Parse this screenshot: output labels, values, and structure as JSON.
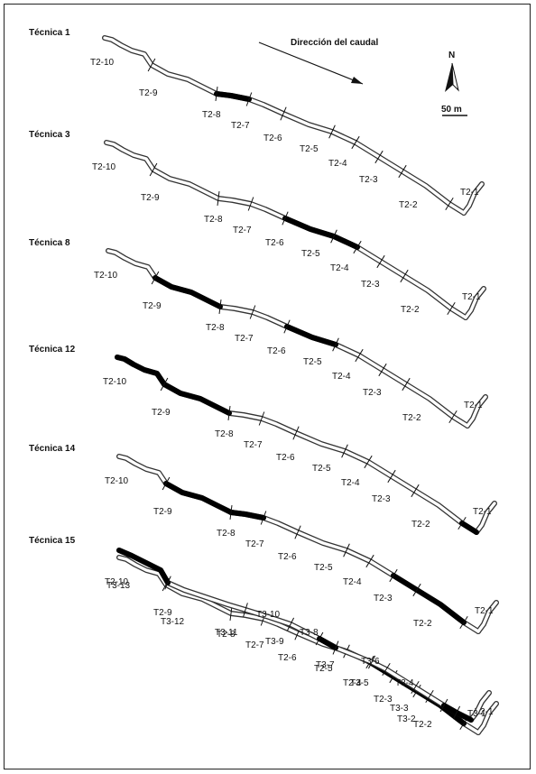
{
  "annotations": {
    "flow_label": "Dirección del caudal",
    "north_label": "N",
    "scale_label": "50 m"
  },
  "colors": {
    "channel_outline": "#333333",
    "channel_fill": "#ffffff",
    "highlight": "#000000",
    "text": "#111111"
  },
  "panels": [
    {
      "title": "Técnica 1",
      "segments": [
        {
          "label": "T2-10",
          "highlighted": false
        },
        {
          "label": "T2-9",
          "highlighted": false
        },
        {
          "label": "T2-8",
          "highlighted": true
        },
        {
          "label": "T2-7",
          "highlighted": false
        },
        {
          "label": "T2-6",
          "highlighted": false
        },
        {
          "label": "T2-5",
          "highlighted": false
        },
        {
          "label": "T2-4",
          "highlighted": false
        },
        {
          "label": "T2-3",
          "highlighted": false
        },
        {
          "label": "T2-2",
          "highlighted": false
        },
        {
          "label": "T2-1",
          "highlighted": false
        }
      ]
    },
    {
      "title": "Técnica 3",
      "segments": [
        {
          "label": "T2-10",
          "highlighted": false
        },
        {
          "label": "T2-9",
          "highlighted": false
        },
        {
          "label": "T2-8",
          "highlighted": false
        },
        {
          "label": "T2-7",
          "highlighted": false
        },
        {
          "label": "T2-6",
          "highlighted": true
        },
        {
          "label": "T2-5",
          "highlighted": true
        },
        {
          "label": "T2-4",
          "highlighted": false
        },
        {
          "label": "T2-3",
          "highlighted": false
        },
        {
          "label": "T2-2",
          "highlighted": false
        },
        {
          "label": "T2-1",
          "highlighted": false
        }
      ]
    },
    {
      "title": "Técnica 8",
      "segments": [
        {
          "label": "T2-10",
          "highlighted": false
        },
        {
          "label": "T2-9",
          "highlighted": true
        },
        {
          "label": "T2-8",
          "highlighted": false
        },
        {
          "label": "T2-7",
          "highlighted": false
        },
        {
          "label": "T2-6",
          "highlighted": true
        },
        {
          "label": "T2-5",
          "highlighted": false
        },
        {
          "label": "T2-4",
          "highlighted": false
        },
        {
          "label": "T2-3",
          "highlighted": false
        },
        {
          "label": "T2-2",
          "highlighted": false
        },
        {
          "label": "T2-1",
          "highlighted": false
        }
      ]
    },
    {
      "title": "Técnica 12",
      "segments": [
        {
          "label": "T2-10",
          "highlighted": true
        },
        {
          "label": "T2-9",
          "highlighted": true
        },
        {
          "label": "T2-8",
          "highlighted": false
        },
        {
          "label": "T2-7",
          "highlighted": false
        },
        {
          "label": "T2-6",
          "highlighted": false
        },
        {
          "label": "T2-5",
          "highlighted": false
        },
        {
          "label": "T2-4",
          "highlighted": false
        },
        {
          "label": "T2-3",
          "highlighted": false
        },
        {
          "label": "T2-2",
          "highlighted": false
        },
        {
          "label": "T2-1",
          "highlighted": true
        }
      ]
    },
    {
      "title": "Técnica 14",
      "segments": [
        {
          "label": "T2-10",
          "highlighted": false
        },
        {
          "label": "T2-9",
          "highlighted": true
        },
        {
          "label": "T2-8",
          "highlighted": true
        },
        {
          "label": "T2-7",
          "highlighted": false
        },
        {
          "label": "T2-6",
          "highlighted": false
        },
        {
          "label": "T2-5",
          "highlighted": false
        },
        {
          "label": "T2-4",
          "highlighted": false
        },
        {
          "label": "T2-3",
          "highlighted": true
        },
        {
          "label": "T2-2",
          "highlighted": true
        },
        {
          "label": "T2-1",
          "highlighted": false
        }
      ]
    },
    {
      "title": "Técnica 15",
      "segments": [
        {
          "label": "T2-10",
          "highlighted": false
        },
        {
          "label": "T2-9",
          "highlighted": false
        },
        {
          "label": "T2-8",
          "highlighted": false
        },
        {
          "label": "T2-7",
          "highlighted": false
        },
        {
          "label": "T2-6",
          "highlighted": false
        },
        {
          "label": "T2-5",
          "highlighted": false
        },
        {
          "label": "T2-4",
          "highlighted": true
        },
        {
          "label": "T2-3",
          "highlighted": true
        },
        {
          "label": "T2-2",
          "highlighted": true
        },
        {
          "label": "T2-1",
          "highlighted": false
        }
      ]
    },
    {
      "title": "",
      "segments": [
        {
          "label": "T3-13",
          "highlighted": true
        },
        {
          "label": "T3-12",
          "highlighted": false
        },
        {
          "label": "T3-11",
          "highlighted": false
        },
        {
          "label": "T3-10",
          "highlighted": false
        },
        {
          "label": "T3-9",
          "highlighted": true
        },
        {
          "label": "T3-8",
          "highlighted": false
        },
        {
          "label": "T3-7",
          "highlighted": false
        },
        {
          "label": "T3-6",
          "highlighted": false
        },
        {
          "label": "T3-5",
          "highlighted": false
        },
        {
          "label": "T3-4",
          "highlighted": false
        },
        {
          "label": "T3-3",
          "highlighted": true
        },
        {
          "label": "T3-2",
          "highlighted": true
        },
        {
          "label": "T3-1",
          "highlighted": false
        }
      ]
    }
  ]
}
